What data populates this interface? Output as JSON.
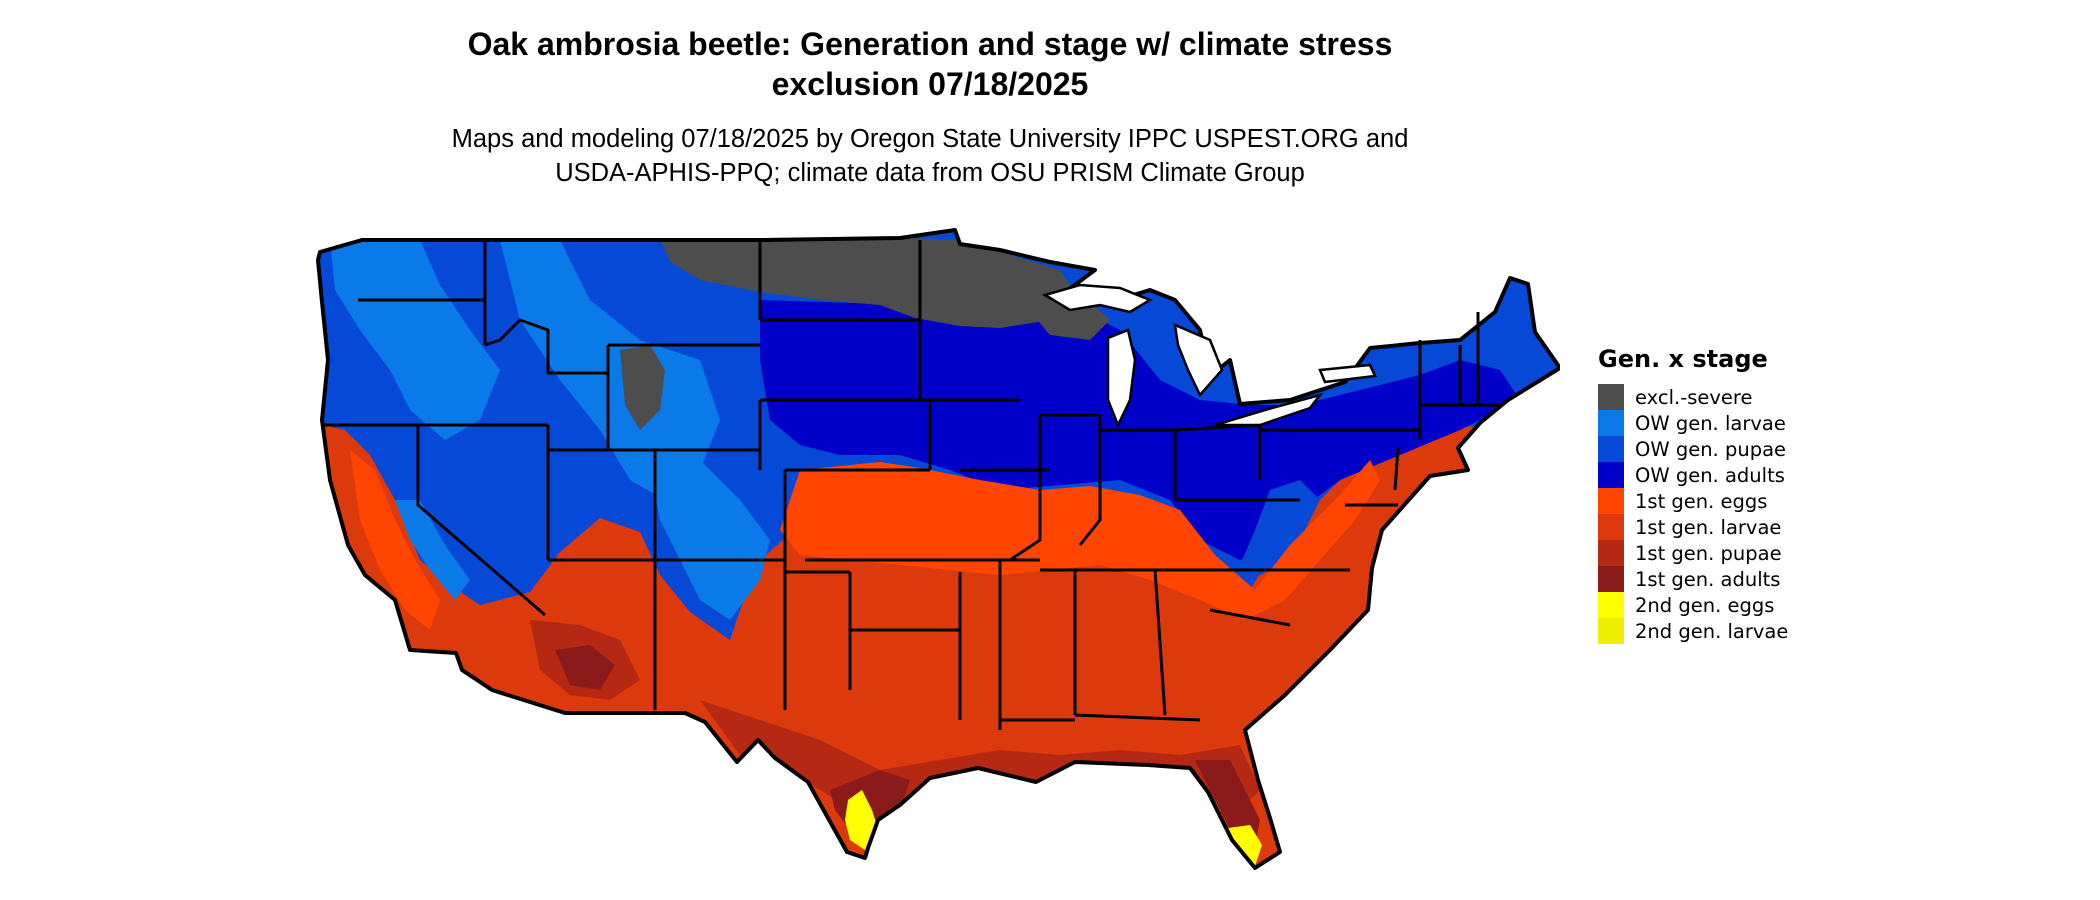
{
  "title_line1": "Oak ambrosia beetle: Generation and stage w/ climate stress",
  "title_line2": "exclusion 07/18/2025",
  "subtitle_line1": "Maps and modeling 07/18/2025 by Oregon State University IPPC USPEST.ORG and",
  "subtitle_line2": "USDA-APHIS-PPQ; climate data from OSU PRISM Climate Group",
  "legend": {
    "title": "Gen. x stage",
    "items": [
      {
        "label": "excl.-severe",
        "color": "#4d4d4d"
      },
      {
        "label": "OW gen. larvae",
        "color": "#0a7ae8"
      },
      {
        "label": "OW gen. pupae",
        "color": "#0649d6"
      },
      {
        "label": "OW gen. adults",
        "color": "#0000c8"
      },
      {
        "label": "1st gen. eggs",
        "color": "#ff4500"
      },
      {
        "label": "1st gen. larvae",
        "color": "#dc3a0c"
      },
      {
        "label": "1st gen. pupae",
        "color": "#b52814"
      },
      {
        "label": "1st gen. adults",
        "color": "#8b1a1a"
      },
      {
        "label": "2nd gen. eggs",
        "color": "#ffff00"
      },
      {
        "label": "2nd gen. larvae",
        "color": "#eeee00"
      }
    ]
  }
}
